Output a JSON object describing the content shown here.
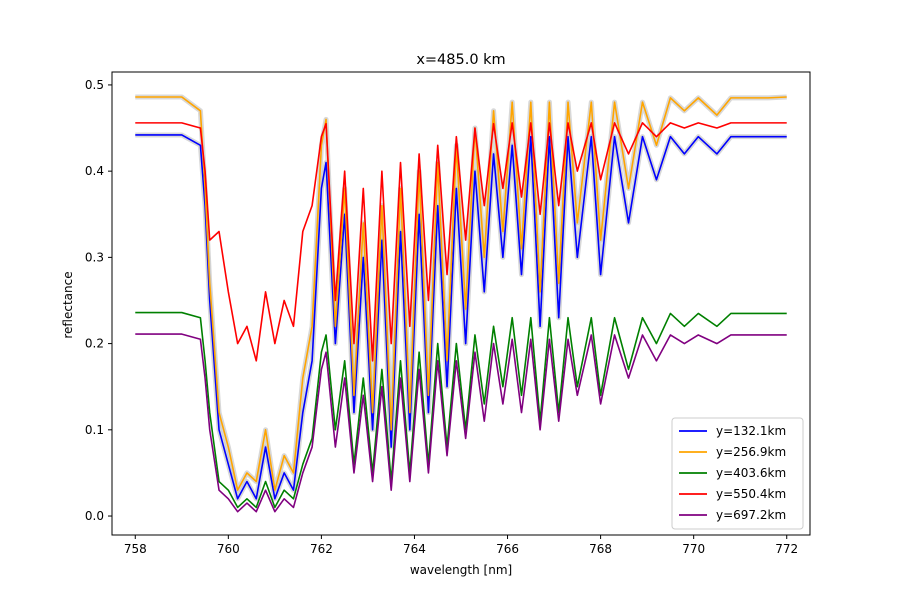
{
  "chart_data": {
    "type": "line",
    "title": "x=485.0 km",
    "xlabel": "wavelength [nm]",
    "ylabel": "reflectance",
    "xlim": [
      757.5,
      772.5
    ],
    "ylim": [
      -0.022,
      0.515
    ],
    "xticks": [
      758,
      760,
      762,
      764,
      766,
      768,
      770,
      772
    ],
    "xtick_labels": [
      "758",
      "760",
      "762",
      "764",
      "766",
      "768",
      "770",
      "772"
    ],
    "yticks": [
      0.0,
      0.1,
      0.2,
      0.3,
      0.4,
      0.5
    ],
    "ytick_labels": [
      "0.0",
      "0.1",
      "0.2",
      "0.3",
      "0.4",
      "0.5"
    ],
    "grid": false,
    "legend_position": "lower-right",
    "band": {
      "description_color": "#c8c8c8"
    },
    "x": [
      758.0,
      759.0,
      759.4,
      759.5,
      759.6,
      759.8,
      760.0,
      760.2,
      760.4,
      760.6,
      760.8,
      761.0,
      761.2,
      761.4,
      761.6,
      761.8,
      762.0,
      762.1,
      762.3,
      762.5,
      762.7,
      762.9,
      763.1,
      763.3,
      763.5,
      763.7,
      763.9,
      764.1,
      764.3,
      764.5,
      764.7,
      764.9,
      765.1,
      765.3,
      765.5,
      765.7,
      765.9,
      766.1,
      766.3,
      766.5,
      766.7,
      766.9,
      767.1,
      767.3,
      767.5,
      767.8,
      768.0,
      768.3,
      768.6,
      768.9,
      769.2,
      769.5,
      769.8,
      770.1,
      770.5,
      770.8,
      771.2,
      771.6,
      772.0
    ],
    "series": [
      {
        "name": "y=132.1km",
        "color": "#0000ff",
        "values": [
          0.442,
          0.442,
          0.43,
          0.36,
          0.25,
          0.1,
          0.06,
          0.02,
          0.04,
          0.02,
          0.08,
          0.02,
          0.05,
          0.03,
          0.12,
          0.18,
          0.38,
          0.41,
          0.2,
          0.35,
          0.12,
          0.3,
          0.1,
          0.32,
          0.08,
          0.33,
          0.1,
          0.35,
          0.12,
          0.36,
          0.15,
          0.38,
          0.2,
          0.4,
          0.26,
          0.42,
          0.3,
          0.43,
          0.28,
          0.44,
          0.22,
          0.44,
          0.23,
          0.44,
          0.3,
          0.44,
          0.28,
          0.44,
          0.34,
          0.44,
          0.39,
          0.44,
          0.42,
          0.44,
          0.42,
          0.44,
          0.44,
          0.44,
          0.44
        ]
      },
      {
        "name": "y=256.9km",
        "color": "#ffa500",
        "values": [
          0.486,
          0.486,
          0.47,
          0.38,
          0.27,
          0.12,
          0.08,
          0.03,
          0.05,
          0.04,
          0.1,
          0.03,
          0.07,
          0.05,
          0.16,
          0.22,
          0.43,
          0.46,
          0.22,
          0.38,
          0.14,
          0.34,
          0.12,
          0.36,
          0.1,
          0.38,
          0.12,
          0.4,
          0.14,
          0.41,
          0.18,
          0.43,
          0.24,
          0.45,
          0.3,
          0.47,
          0.33,
          0.48,
          0.31,
          0.48,
          0.26,
          0.48,
          0.27,
          0.48,
          0.34,
          0.48,
          0.32,
          0.48,
          0.38,
          0.48,
          0.43,
          0.485,
          0.47,
          0.485,
          0.465,
          0.485,
          0.485,
          0.485,
          0.486
        ]
      },
      {
        "name": "y=403.6km",
        "color": "#008000",
        "values": [
          0.236,
          0.236,
          0.23,
          0.18,
          0.12,
          0.04,
          0.03,
          0.01,
          0.02,
          0.01,
          0.04,
          0.01,
          0.03,
          0.02,
          0.06,
          0.09,
          0.19,
          0.21,
          0.1,
          0.18,
          0.06,
          0.16,
          0.05,
          0.17,
          0.04,
          0.18,
          0.05,
          0.19,
          0.06,
          0.2,
          0.08,
          0.2,
          0.1,
          0.21,
          0.13,
          0.22,
          0.15,
          0.23,
          0.14,
          0.23,
          0.11,
          0.23,
          0.12,
          0.23,
          0.15,
          0.23,
          0.14,
          0.23,
          0.17,
          0.23,
          0.2,
          0.235,
          0.22,
          0.235,
          0.22,
          0.235,
          0.235,
          0.235,
          0.235
        ]
      },
      {
        "name": "y=550.4km",
        "color": "#ff0000",
        "values": [
          0.456,
          0.456,
          0.45,
          0.4,
          0.32,
          0.33,
          0.26,
          0.2,
          0.22,
          0.18,
          0.26,
          0.2,
          0.25,
          0.22,
          0.33,
          0.36,
          0.44,
          0.455,
          0.25,
          0.4,
          0.2,
          0.38,
          0.18,
          0.4,
          0.2,
          0.41,
          0.22,
          0.42,
          0.25,
          0.43,
          0.28,
          0.44,
          0.32,
          0.45,
          0.36,
          0.455,
          0.38,
          0.456,
          0.37,
          0.456,
          0.35,
          0.456,
          0.36,
          0.456,
          0.4,
          0.456,
          0.39,
          0.456,
          0.42,
          0.456,
          0.44,
          0.456,
          0.45,
          0.456,
          0.45,
          0.456,
          0.456,
          0.456,
          0.456
        ]
      },
      {
        "name": "y=697.2km",
        "color": "#800080",
        "values": [
          0.211,
          0.211,
          0.205,
          0.16,
          0.1,
          0.03,
          0.02,
          0.005,
          0.015,
          0.005,
          0.03,
          0.005,
          0.02,
          0.01,
          0.05,
          0.08,
          0.17,
          0.19,
          0.08,
          0.16,
          0.05,
          0.14,
          0.04,
          0.15,
          0.03,
          0.16,
          0.04,
          0.17,
          0.05,
          0.18,
          0.07,
          0.18,
          0.09,
          0.19,
          0.11,
          0.2,
          0.13,
          0.205,
          0.12,
          0.205,
          0.1,
          0.205,
          0.11,
          0.205,
          0.14,
          0.21,
          0.13,
          0.21,
          0.16,
          0.21,
          0.18,
          0.21,
          0.2,
          0.21,
          0.2,
          0.21,
          0.21,
          0.21,
          0.21
        ]
      }
    ]
  }
}
